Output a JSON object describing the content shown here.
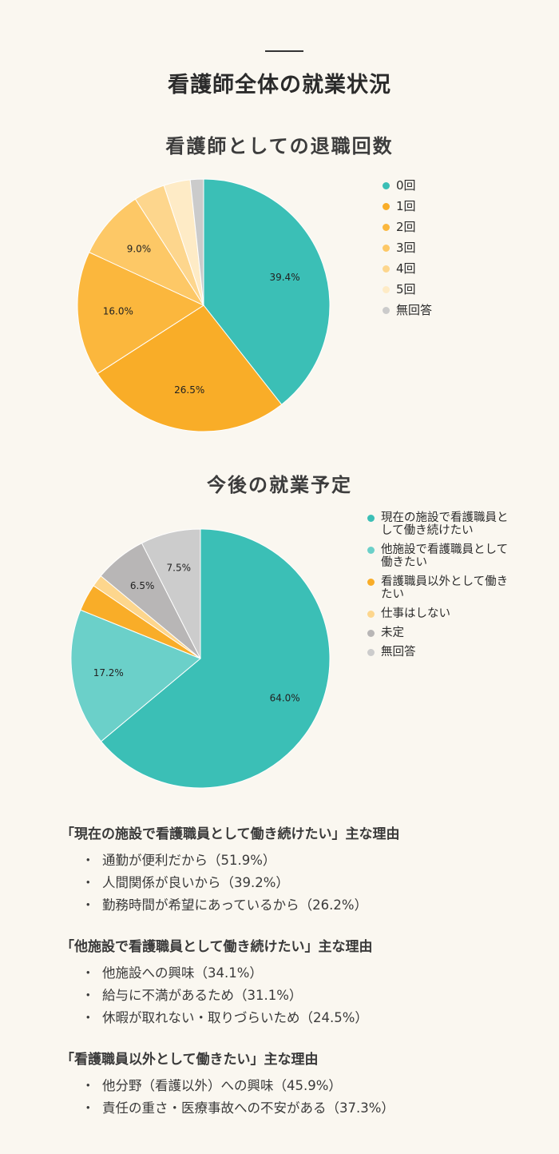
{
  "page": {
    "title": "看護師全体の就業状況"
  },
  "chart_data": [
    {
      "type": "pie",
      "title": "看護師としての退職回数",
      "categories": [
        "0回",
        "1回",
        "2回",
        "3回",
        "4回",
        "5回",
        "無回答"
      ],
      "values": [
        39.4,
        26.5,
        16.0,
        9.0,
        4.0,
        3.4,
        1.7
      ],
      "data_labels": [
        "39.4%",
        "26.5%",
        "16.0%",
        "9.0%",
        "",
        "",
        ""
      ],
      "colors": [
        "#3bbfb6",
        "#f9ad28",
        "#fbb73d",
        "#fdc866",
        "#fdd68d",
        "#feebc6",
        "#cbcbcb"
      ],
      "legend": "right"
    },
    {
      "type": "pie",
      "title": "今後の就業予定",
      "categories": [
        "現在の施設で看護職員として働き続けたい",
        "他施設で看護職員として働きたい",
        "看護職員以外として働きたい",
        "仕事はしない",
        "未定",
        "無回答"
      ],
      "values": [
        64.0,
        17.2,
        3.4,
        1.5,
        6.5,
        7.5
      ],
      "data_labels": [
        "64.0%",
        "17.2%",
        "",
        "",
        "6.5%",
        "7.5%"
      ],
      "colors": [
        "#3bbfb6",
        "#6bd0c9",
        "#f9ad28",
        "#fdd68d",
        "#b8b6b6",
        "#cccccc"
      ],
      "legend": "right"
    }
  ],
  "reasons": [
    {
      "title": "「現在の施設で看護職員として働き続けたい」主な理由",
      "items": [
        "通勤が便利だから（51.9%）",
        "人間関係が良いから（39.2%）",
        "勤務時間が希望にあっているから（26.2%）"
      ]
    },
    {
      "title": "「他施設で看護職員として働き続けたい」主な理由",
      "items": [
        "他施設への興味（34.1%）",
        "給与に不満があるため（31.1%）",
        "休暇が取れない・取りづらいため（24.5%）"
      ]
    },
    {
      "title": "「看護職員以外として働きたい」主な理由",
      "items": [
        "他分野（看護以外）への興味（45.9%）",
        "責任の重さ・医療事故への不安がある（37.3%）"
      ]
    }
  ]
}
